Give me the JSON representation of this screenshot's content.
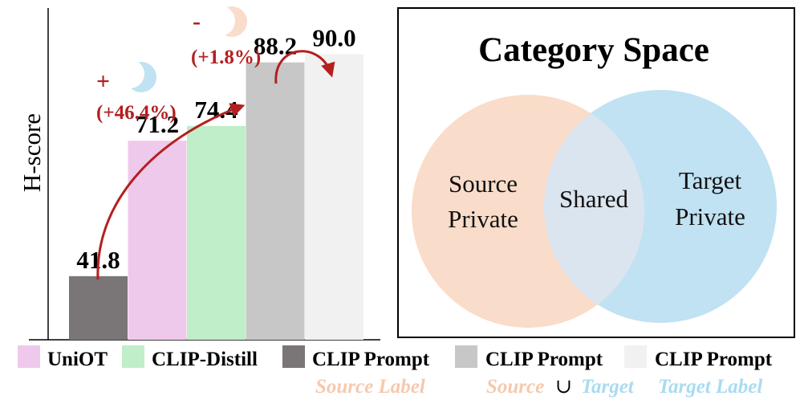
{
  "chart_data": {
    "type": "bar",
    "ylabel": "H-score",
    "categories": [
      "CLIP Prompt Source Label",
      "UniOT",
      "CLIP-Distill",
      "CLIP Prompt Source ∪ Target",
      "CLIP Prompt Target Label"
    ],
    "values": [
      41.8,
      71.2,
      74.4,
      88.2,
      90.0
    ],
    "value_labels": [
      "41.8",
      "71.2",
      "74.4",
      "88.2",
      "90.0"
    ],
    "bar_colors": [
      "#7a7576",
      "#efc9ec",
      "#bfeec9",
      "#c7c7c7",
      "#f1f1f1"
    ],
    "ylim": [
      28,
      100
    ],
    "grid": false,
    "annotations": [
      {
        "sign": "+",
        "text": "(+46.4%)",
        "moon_color": "#c0e2f2"
      },
      {
        "sign": "-",
        "text": "(+1.8%)",
        "moon_color": "#f9dcc9"
      }
    ],
    "legend": [
      {
        "label": "UniOT",
        "color": "#efc9ec"
      },
      {
        "label": "CLIP-Distill",
        "color": "#bfeec9"
      },
      {
        "label": "CLIP Prompt",
        "color": "#7a7576"
      },
      {
        "label": "CLIP Prompt",
        "color": "#c7c7c7"
      },
      {
        "label": "CLIP Prompt",
        "color": "#f1f1f1"
      }
    ],
    "legend_sublabels": {
      "source_label": "Source Label",
      "source": "Source",
      "union": "∪",
      "target": "Target",
      "target_label": "Target Label"
    },
    "legend_placement": "bottom"
  },
  "venn": {
    "title": "Category Space",
    "source_private": [
      "Source",
      "Private"
    ],
    "shared": "Shared",
    "target_private": [
      "Target",
      "Private"
    ],
    "source_color": "#f9dcc9",
    "target_color": "#c0e2f2",
    "overlap_color": "#dbe5ef"
  },
  "colors": {
    "annotation_red": "#b41f1f",
    "source_orange": "#f5c9ad",
    "target_blue": "#a9dbf1"
  }
}
